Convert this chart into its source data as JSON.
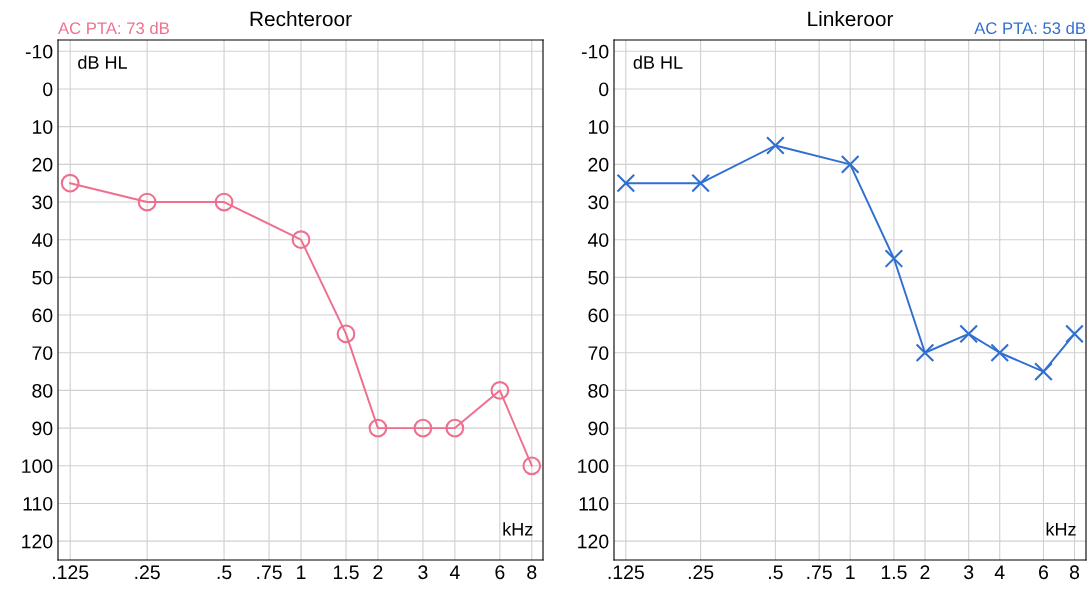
{
  "chart_data": [
    {
      "type": "line",
      "title": "Rechteroor",
      "x": [
        0.125,
        0.25,
        0.5,
        1,
        1.5,
        2,
        3,
        4,
        6,
        8
      ],
      "series": [
        {
          "color": "#ef6f8e",
          "values": [
            25,
            30,
            30,
            40,
            65,
            90,
            90,
            90,
            80,
            100
          ]
        }
      ],
      "log": "x",
      "xlim": [
        0.112,
        8.85
      ],
      "xticks": [
        {
          "value": 0.125,
          "label": ".125"
        },
        {
          "value": 0.25,
          "label": ".25"
        },
        {
          "value": 0.5,
          "label": ".5"
        },
        {
          "value": 0.75,
          "label": ".75"
        },
        1,
        1.5,
        2,
        3,
        4,
        6,
        8
      ],
      "ylim": [
        125,
        -13
      ],
      "yticks": [
        -10,
        0,
        10,
        20,
        30,
        40,
        50,
        60,
        70,
        80,
        90,
        100,
        110,
        120
      ],
      "grid": true,
      "marker": "circle",
      "line_style": "solid",
      "annotations": [
        "dB HL",
        "kHz",
        "AC PTA: 73 dB"
      ]
    },
    {
      "type": "line",
      "title": "Linkeroor",
      "x": [
        0.125,
        0.25,
        0.5,
        1,
        1.5,
        2,
        3,
        4,
        6,
        8
      ],
      "series": [
        {
          "color": "#2f6fd0",
          "values": [
            25,
            25,
            15,
            20,
            45,
            70,
            65,
            70,
            75,
            65
          ]
        }
      ],
      "log": "x",
      "xlim": [
        0.112,
        8.9
      ],
      "xticks": [
        {
          "value": 0.125,
          "label": ".125"
        },
        {
          "value": 0.25,
          "label": ".25"
        },
        {
          "value": 0.5,
          "label": ".5"
        },
        {
          "value": 0.75,
          "label": ".75"
        },
        1,
        1.5,
        2,
        3,
        4,
        6,
        8
      ],
      "ylim": [
        125,
        -13
      ],
      "yticks": [
        -10,
        0,
        10,
        20,
        30,
        40,
        50,
        60,
        70,
        80,
        90,
        100,
        110,
        120
      ],
      "grid": true,
      "marker": "cross",
      "line_style": "solid",
      "annotations": [
        "dB HL",
        "kHz",
        "AC PTA: 53 dB"
      ]
    }
  ]
}
